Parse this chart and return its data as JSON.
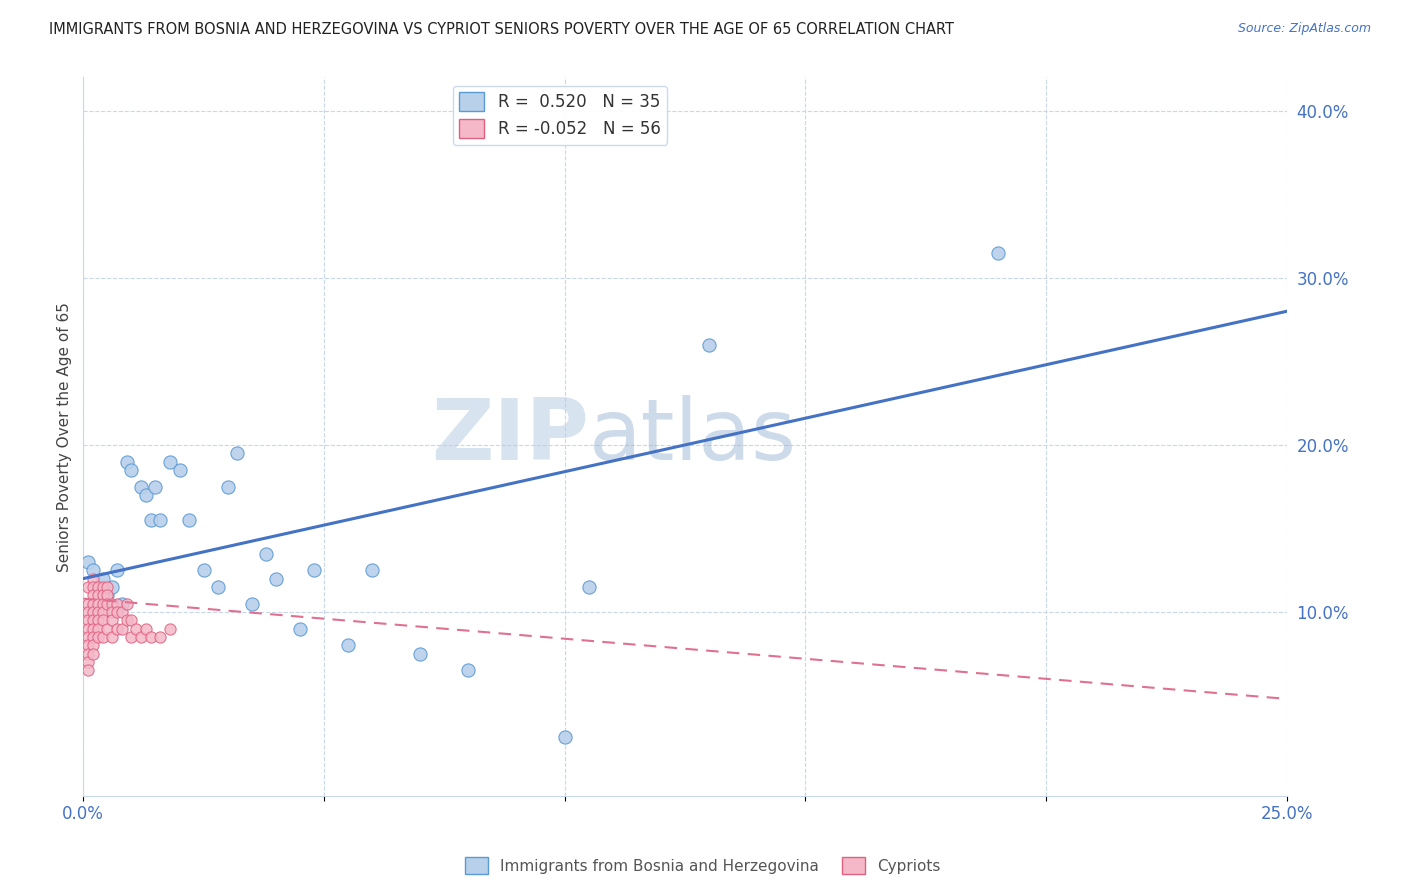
{
  "title": "IMMIGRANTS FROM BOSNIA AND HERZEGOVINA VS CYPRIOT SENIORS POVERTY OVER THE AGE OF 65 CORRELATION CHART",
  "source": "Source: ZipAtlas.com",
  "ylabel": "Seniors Poverty Over the Age of 65",
  "xlim": [
    0,
    0.25
  ],
  "ylim": [
    -0.01,
    0.42
  ],
  "xticks": [
    0.0,
    0.05,
    0.1,
    0.15,
    0.2,
    0.25
  ],
  "yticks_right": [
    0.1,
    0.2,
    0.3,
    0.4
  ],
  "ytick_right_labels": [
    "10.0%",
    "20.0%",
    "30.0%",
    "40.0%"
  ],
  "blue_color": "#b8d0ea",
  "blue_edge_color": "#5b9bd5",
  "blue_line_color": "#4472c4",
  "pink_color": "#f4b8c8",
  "pink_edge_color": "#e06080",
  "pink_line_color": "#e07090",
  "R_blue": 0.52,
  "N_blue": 35,
  "R_pink": -0.052,
  "N_pink": 56,
  "legend_label_blue": "Immigrants from Bosnia and Herzegovina",
  "legend_label_pink": "Cypriots",
  "watermark_zip": "ZIP",
  "watermark_atlas": "atlas",
  "blue_line_x0": 0.0,
  "blue_line_y0": 0.12,
  "blue_line_x1": 0.25,
  "blue_line_y1": 0.28,
  "pink_line_x0": 0.0,
  "pink_line_y0": 0.108,
  "pink_line_x1": 0.25,
  "pink_line_y1": 0.048,
  "blue_scatter_x": [
    0.001,
    0.002,
    0.003,
    0.004,
    0.005,
    0.006,
    0.007,
    0.008,
    0.009,
    0.01,
    0.012,
    0.013,
    0.014,
    0.015,
    0.016,
    0.018,
    0.02,
    0.022,
    0.025,
    0.028,
    0.03,
    0.032,
    0.035,
    0.038,
    0.04,
    0.045,
    0.048,
    0.055,
    0.06,
    0.07,
    0.08,
    0.1,
    0.105,
    0.19,
    0.13
  ],
  "blue_scatter_y": [
    0.13,
    0.125,
    0.115,
    0.12,
    0.11,
    0.115,
    0.125,
    0.105,
    0.19,
    0.185,
    0.175,
    0.17,
    0.155,
    0.175,
    0.155,
    0.19,
    0.185,
    0.155,
    0.125,
    0.115,
    0.175,
    0.195,
    0.105,
    0.135,
    0.12,
    0.09,
    0.125,
    0.08,
    0.125,
    0.075,
    0.065,
    0.025,
    0.115,
    0.315,
    0.26
  ],
  "pink_scatter_x": [
    0.001,
    0.001,
    0.001,
    0.001,
    0.001,
    0.001,
    0.001,
    0.001,
    0.001,
    0.001,
    0.002,
    0.002,
    0.002,
    0.002,
    0.002,
    0.002,
    0.002,
    0.002,
    0.002,
    0.002,
    0.003,
    0.003,
    0.003,
    0.003,
    0.003,
    0.003,
    0.003,
    0.004,
    0.004,
    0.004,
    0.004,
    0.004,
    0.004,
    0.005,
    0.005,
    0.005,
    0.005,
    0.006,
    0.006,
    0.006,
    0.006,
    0.007,
    0.007,
    0.007,
    0.008,
    0.008,
    0.009,
    0.009,
    0.01,
    0.01,
    0.011,
    0.012,
    0.013,
    0.014,
    0.016,
    0.018
  ],
  "pink_scatter_y": [
    0.115,
    0.105,
    0.1,
    0.095,
    0.09,
    0.085,
    0.08,
    0.075,
    0.07,
    0.065,
    0.12,
    0.115,
    0.11,
    0.105,
    0.1,
    0.095,
    0.09,
    0.085,
    0.08,
    0.075,
    0.115,
    0.11,
    0.105,
    0.1,
    0.095,
    0.09,
    0.085,
    0.115,
    0.11,
    0.105,
    0.1,
    0.095,
    0.085,
    0.115,
    0.11,
    0.105,
    0.09,
    0.105,
    0.1,
    0.095,
    0.085,
    0.105,
    0.1,
    0.09,
    0.1,
    0.09,
    0.105,
    0.095,
    0.095,
    0.085,
    0.09,
    0.085,
    0.09,
    0.085,
    0.085,
    0.09
  ]
}
